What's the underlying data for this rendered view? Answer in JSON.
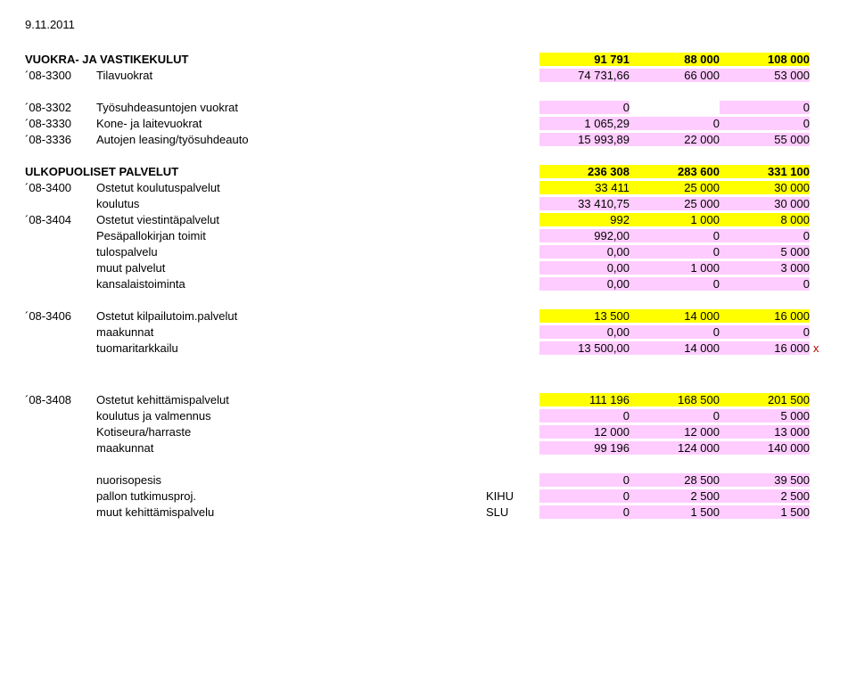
{
  "date": "9.11.2011",
  "colors": {
    "highlight_yellow": "#ffff00",
    "highlight_pink": "#ffccff",
    "text": "#000000",
    "bg": "#ffffff",
    "mark_red": "#c00000"
  },
  "sections": [
    {
      "header": {
        "label": "VUOKRA- JA VASTIKEKULUT",
        "c1": "91 791",
        "c2": "88 000",
        "c3": "108 000"
      },
      "rows": [
        {
          "code": "´08-3300",
          "label": "Tilavuokrat",
          "c1": "74 731,66",
          "c2": "66 000",
          "c3": "53 000",
          "pink": true
        }
      ]
    },
    {
      "rows": [
        {
          "code": "´08-3302",
          "label": "Työsuhdeasuntojen vuokrat",
          "c1": "0",
          "c2": "",
          "c3": "0",
          "pink": true
        },
        {
          "code": "´08-3330",
          "label": "Kone- ja laitevuokrat",
          "c1": "1 065,29",
          "c2": "0",
          "c3": "0",
          "pink": true
        },
        {
          "code": "´08-3336",
          "label": "Autojen leasing/työsuhdeauto",
          "c1": "15 993,89",
          "c2": "22 000",
          "c3": "55 000",
          "pink": true
        }
      ]
    },
    {
      "header": {
        "label": "ULKOPUOLISET PALVELUT",
        "c1": "236 308",
        "c2": "283 600",
        "c3": "331 100"
      },
      "rows": [
        {
          "code": "´08-3400",
          "label": "Ostetut koulutuspalvelut",
          "c1": "33 411",
          "c2": "25 000",
          "c3": "30 000",
          "yellow": true
        },
        {
          "sub": true,
          "label": "koulutus",
          "c1": "33 410,75",
          "c2": "25 000",
          "c3": "30 000",
          "pink": true
        },
        {
          "code": "´08-3404",
          "label": "Ostetut viestintäpalvelut",
          "c1": "992",
          "c2": "1 000",
          "c3": "8 000",
          "yellow": true
        },
        {
          "sub": true,
          "label": "Pesäpallokirjan toimit",
          "c1": "992,00",
          "c2": "0",
          "c3": "0",
          "pink": true
        },
        {
          "sub": true,
          "label": "tulospalvelu",
          "c1": "0,00",
          "c2": "0",
          "c3": "5 000",
          "pink": true
        },
        {
          "sub": true,
          "label": "muut palvelut",
          "c1": "0,00",
          "c2": "1 000",
          "c3": "3 000",
          "pink": true
        },
        {
          "sub": true,
          "label": "kansalaistoiminta",
          "c1": "0,00",
          "c2": "0",
          "c3": "0",
          "pink": true
        }
      ]
    },
    {
      "rows": [
        {
          "code": "´08-3406",
          "label": "Ostetut kilpailutoim.palvelut",
          "c1": "13 500",
          "c2": "14 000",
          "c3": "16 000",
          "yellow": true
        },
        {
          "sub": true,
          "label": "maakunnat",
          "c1": "0,00",
          "c2": "0",
          "c3": "0",
          "pink": true
        },
        {
          "sub": true,
          "label": "tuomaritarkkailu",
          "c1": "13 500,00",
          "c2": "14 000",
          "c3": "16 000",
          "pink": true,
          "mark": "x"
        }
      ]
    },
    {
      "rows": [
        {
          "code": "´08-3408",
          "label": "Ostetut kehittämispalvelut",
          "c1": "111 196",
          "c2": "168 500",
          "c3": "201 500",
          "yellow": true
        },
        {
          "sub": true,
          "label": "koulutus ja valmennus",
          "c1": "0",
          "c2": "0",
          "c3": "5 000",
          "pink": true
        },
        {
          "sub": true,
          "label": "Kotiseura/harraste",
          "c1": "12 000",
          "c2": "12 000",
          "c3": "13 000",
          "pink": true
        },
        {
          "sub": true,
          "label": "maakunnat",
          "c1": "99 196",
          "c2": "124 000",
          "c3": "140 000",
          "pink": true
        }
      ]
    },
    {
      "rows": [
        {
          "sub": true,
          "label": "nuorisopesis",
          "c1": "0",
          "c2": "28 500",
          "c3": "39 500",
          "pink": true
        },
        {
          "sub": true,
          "label": "pallon tutkimusproj.",
          "extra": "KIHU",
          "c1": "0",
          "c2": "2 500",
          "c3": "2 500",
          "pink": true
        },
        {
          "sub": true,
          "label": "muut kehittämispalvelu",
          "extra": "SLU",
          "c1": "0",
          "c2": "1 500",
          "c3": "1 500",
          "pink": true
        }
      ]
    }
  ]
}
